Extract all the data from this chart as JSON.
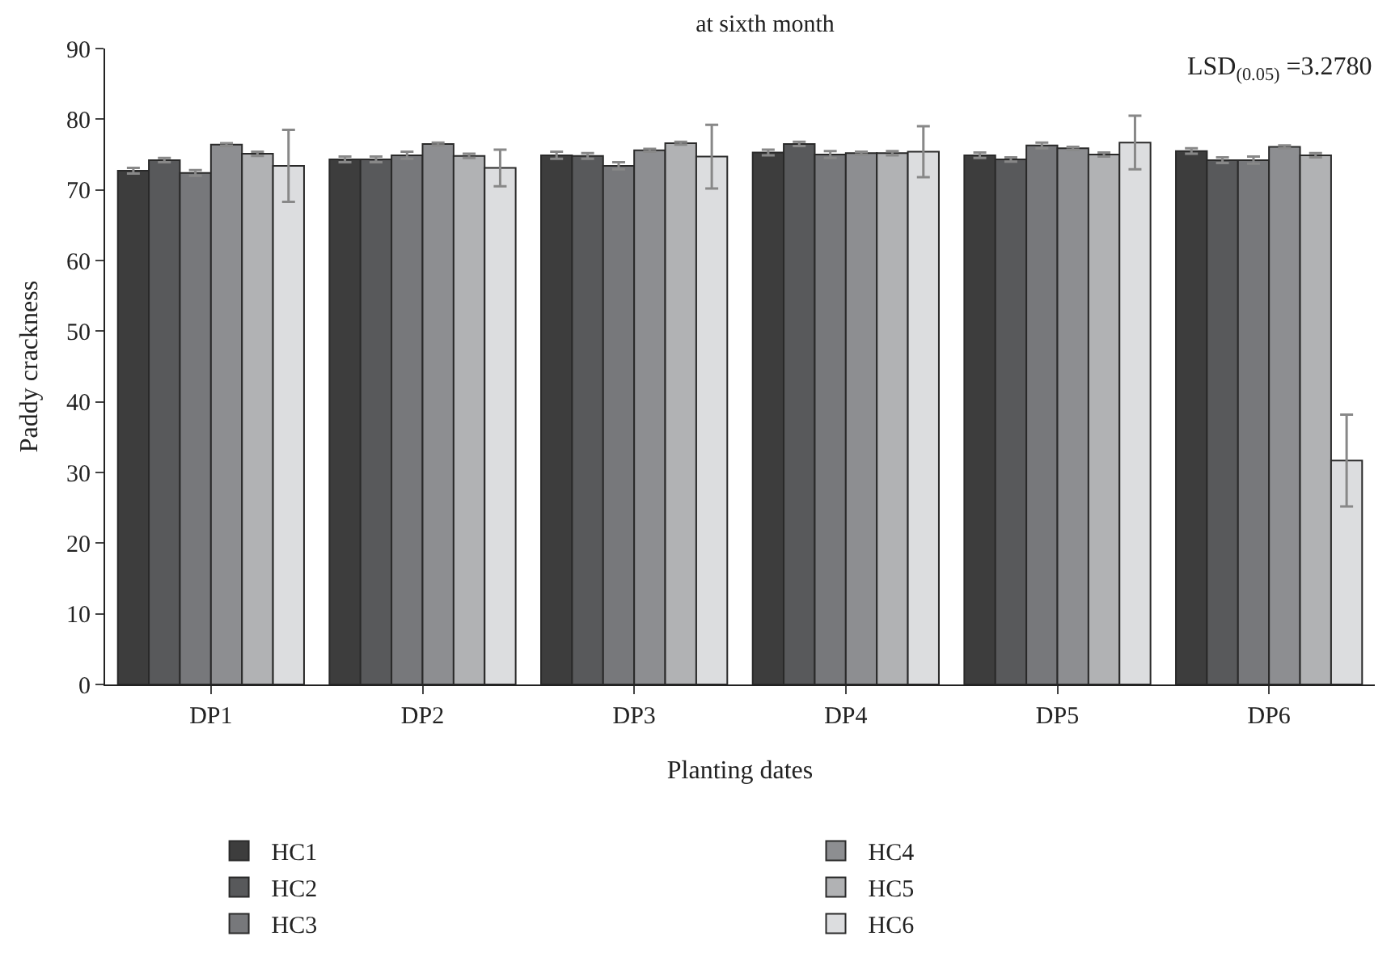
{
  "chart_data": {
    "type": "bar",
    "title": "at sixth month",
    "xlabel": "Planting dates",
    "ylabel": "Paddy crackness",
    "categories": [
      "DP1",
      "DP2",
      "DP3",
      "DP4",
      "DP5",
      "DP6"
    ],
    "series": [
      {
        "name": "HC1",
        "color": "#3d3d3d",
        "values": [
          72.7,
          74.3,
          74.9,
          75.3,
          74.9,
          75.5
        ],
        "errors": [
          0.4,
          0.4,
          0.5,
          0.4,
          0.4,
          0.4
        ]
      },
      {
        "name": "HC2",
        "color": "#58595b",
        "values": [
          74.2,
          74.3,
          74.8,
          76.5,
          74.3,
          74.2
        ],
        "errors": [
          0.3,
          0.4,
          0.4,
          0.3,
          0.3,
          0.4
        ]
      },
      {
        "name": "HC3",
        "color": "#77787b",
        "values": [
          72.4,
          74.9,
          73.4,
          75.0,
          76.3,
          74.2
        ],
        "errors": [
          0.4,
          0.5,
          0.5,
          0.5,
          0.4,
          0.5
        ]
      },
      {
        "name": "HC4",
        "color": "#8d8e91",
        "values": [
          76.4,
          76.5,
          75.6,
          75.2,
          75.9,
          76.1
        ],
        "errors": [
          0.2,
          0.2,
          0.2,
          0.2,
          0.2,
          0.2
        ]
      },
      {
        "name": "HC5",
        "color": "#b1b2b4",
        "values": [
          75.1,
          74.8,
          76.6,
          75.2,
          75.0,
          74.9
        ],
        "errors": [
          0.3,
          0.3,
          0.2,
          0.3,
          0.3,
          0.3
        ]
      },
      {
        "name": "HC6",
        "color": "#dcdddf",
        "values": [
          73.4,
          73.1,
          74.7,
          75.4,
          76.7,
          31.7
        ],
        "errors": [
          5.1,
          2.6,
          4.5,
          3.6,
          3.8,
          6.5
        ]
      }
    ],
    "ylim": [
      0,
      90
    ],
    "yticks": [
      0,
      10,
      20,
      30,
      40,
      50,
      60,
      70,
      80,
      90
    ],
    "grid": false,
    "legend": "bottom",
    "annotations": [
      "LSD$_{(0.05)}$ =3.2780"
    ]
  }
}
